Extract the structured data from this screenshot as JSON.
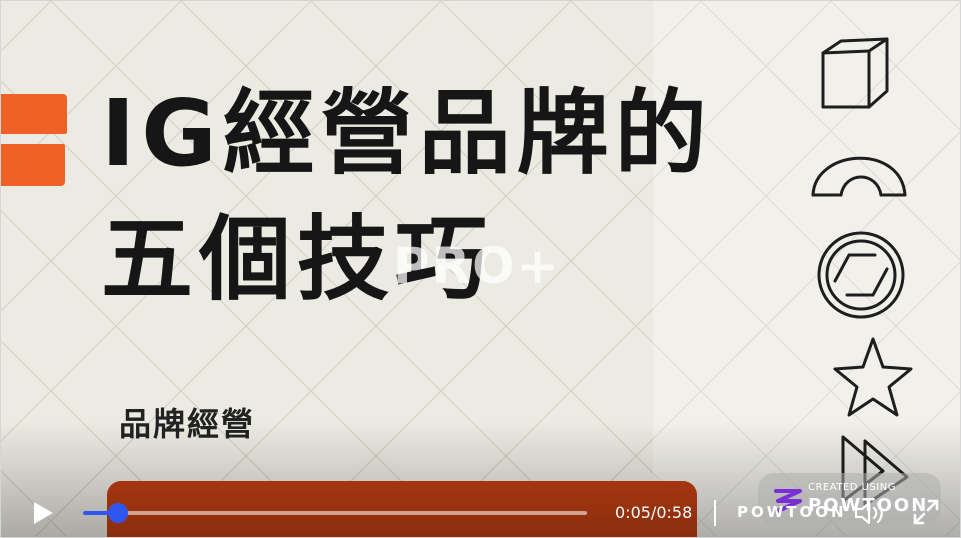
{
  "slide": {
    "title_line1": "IG經營品牌的",
    "title_line2": "五個技巧",
    "subtitle": "品牌經營",
    "watermark": "PRO+"
  },
  "icons": [
    "cube-sketch-icon",
    "arch-sketch-icon",
    "spiral-circle-sketch-icon",
    "star-sketch-icon",
    "triangles-sketch-icon"
  ],
  "badge": {
    "small_text": "CREATED USING",
    "brand": "POWTOON"
  },
  "player": {
    "current_time": "0:05",
    "total_time": "0:58",
    "time_display": "0:05/0:58",
    "progress_fraction": 0.07,
    "brand_label": "POWTOON",
    "accent_color": "#3056f0"
  },
  "colors": {
    "background": "#ecebe3",
    "orange": "#f06128",
    "orange_dark": "#bf3f12",
    "title": "#161616"
  }
}
